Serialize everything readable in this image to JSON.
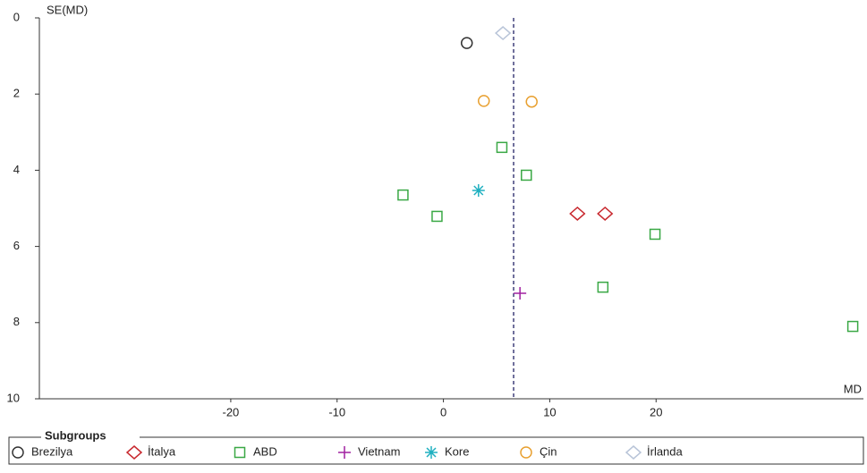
{
  "chart_data": {
    "type": "scatter",
    "y_axis_label": "SE(MD)",
    "x_axis_label": "MD",
    "xlim": [
      -38,
      39.5
    ],
    "ylim": [
      0,
      10
    ],
    "y_inverted": true,
    "xticks": [
      -20,
      -10,
      0,
      10,
      20
    ],
    "yticks": [
      0,
      2,
      4,
      6,
      8,
      10
    ],
    "reference_line": 6.6,
    "legend_title": "Subgroups",
    "series": [
      {
        "name": "Brezilya",
        "color": "#333333",
        "marker": "circle",
        "x": [
          2.2
        ],
        "y": [
          0.66
        ]
      },
      {
        "name": "İtalya",
        "color": "#c8282e",
        "marker": "diamond",
        "x": [
          12.6,
          15.2
        ],
        "y": [
          5.14,
          5.14
        ]
      },
      {
        "name": "ABD",
        "color": "#3aa845",
        "marker": "square",
        "x": [
          5.5,
          7.8,
          -3.8,
          -0.6,
          19.9,
          15.0,
          38.5
        ],
        "y": [
          3.4,
          4.13,
          4.65,
          5.21,
          5.68,
          7.07,
          8.1
        ]
      },
      {
        "name": "Vietnam",
        "color": "#a020a0",
        "marker": "plus",
        "x": [
          7.2
        ],
        "y": [
          7.23
        ]
      },
      {
        "name": "Kore",
        "color": "#20b0c0",
        "marker": "star",
        "x": [
          3.3
        ],
        "y": [
          4.53
        ]
      },
      {
        "name": "Çin",
        "color": "#e8a030",
        "marker": "circle",
        "x": [
          3.8,
          8.3
        ],
        "y": [
          2.18,
          2.2
        ]
      },
      {
        "name": "İrlanda",
        "color": "#b8c4d8",
        "marker": "diamond",
        "x": [
          5.6
        ],
        "y": [
          0.4
        ]
      }
    ]
  }
}
